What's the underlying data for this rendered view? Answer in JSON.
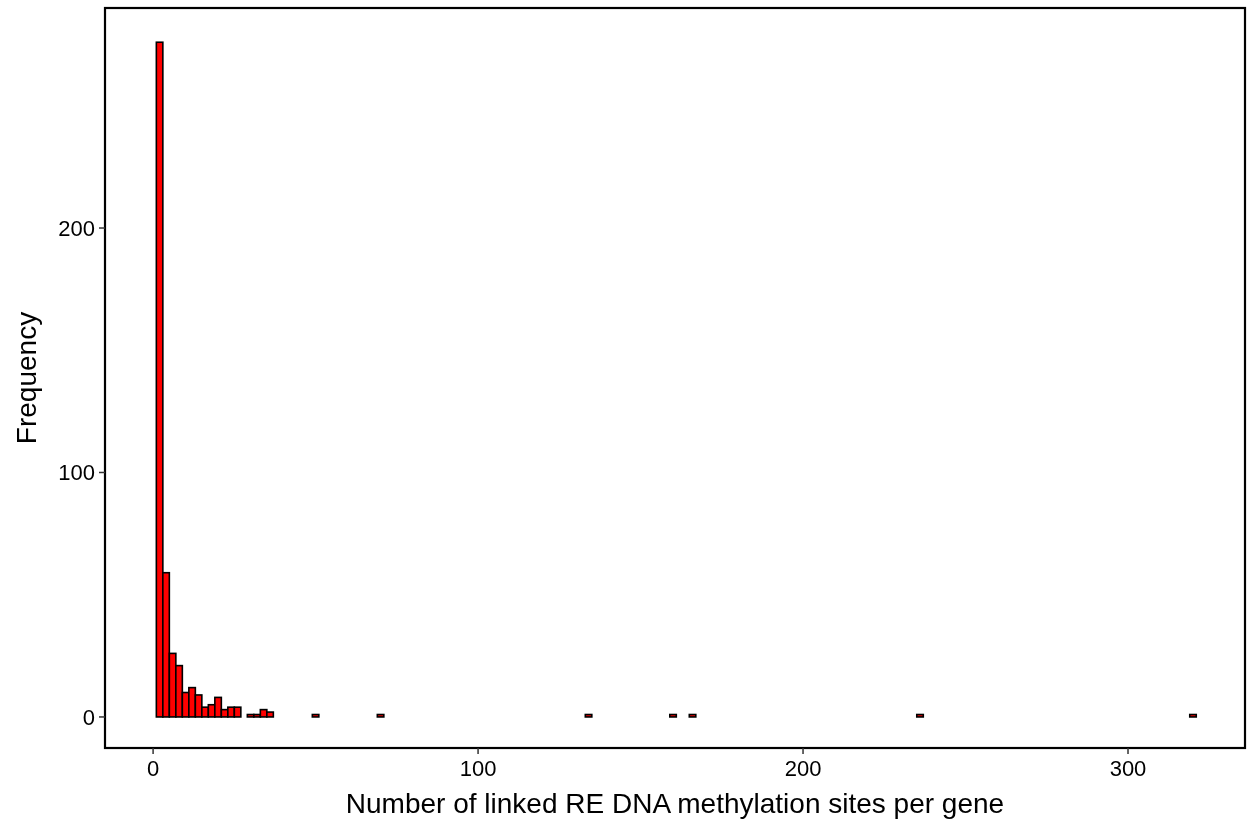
{
  "chart_data": {
    "type": "histogram",
    "xlabel": "Number of linked RE DNA methylation sites per gene",
    "ylabel": "Frequency",
    "color": "#ff0000",
    "bins": [
      1,
      3,
      5,
      7,
      9,
      11,
      13,
      15,
      17,
      19,
      21,
      23,
      25,
      27,
      29,
      31,
      33,
      35,
      37,
      39,
      41,
      43,
      45,
      47,
      49,
      51,
      53,
      55,
      57,
      59,
      61,
      63,
      65,
      67,
      69,
      71,
      73,
      75,
      77,
      79,
      81,
      83,
      85,
      87,
      89,
      91,
      93,
      95,
      97,
      99,
      101,
      103,
      105,
      107,
      109,
      111,
      113,
      115,
      117,
      119,
      121,
      123,
      125,
      127,
      129,
      131,
      133,
      135,
      137,
      139,
      141,
      143,
      145,
      147,
      149,
      151,
      153,
      155,
      157,
      159,
      161,
      163,
      165,
      167,
      169,
      171,
      173,
      175,
      177,
      179,
      181,
      183,
      185,
      187,
      189,
      191,
      193,
      195,
      197,
      199,
      201,
      203,
      205,
      207,
      209,
      211,
      213,
      215,
      217,
      219,
      221,
      223,
      225,
      227,
      229,
      231,
      233,
      235,
      237,
      239,
      241,
      243,
      245,
      247,
      249,
      251,
      253,
      255,
      257,
      259,
      261,
      263,
      265,
      267,
      269,
      271,
      273,
      275,
      277,
      279,
      281,
      283,
      285,
      287,
      289,
      291,
      293,
      295,
      297,
      299,
      301,
      303,
      305,
      307,
      309,
      311,
      313,
      315,
      317,
      319,
      321
    ],
    "values": [
      276,
      59,
      26,
      21,
      10,
      12,
      9,
      4,
      5,
      8,
      3,
      4,
      4,
      0,
      1,
      1,
      3,
      2,
      0,
      0,
      0,
      0,
      0,
      0,
      1,
      0,
      0,
      0,
      0,
      0,
      0,
      0,
      0,
      0,
      1,
      0,
      0,
      0,
      0,
      0,
      0,
      0,
      0,
      0,
      0,
      0,
      0,
      0,
      0,
      0,
      0,
      0,
      0,
      0,
      0,
      0,
      0,
      0,
      0,
      0,
      0,
      0,
      0,
      0,
      0,
      0,
      1,
      0,
      0,
      0,
      0,
      0,
      0,
      0,
      0,
      0,
      0,
      0,
      0,
      1,
      0,
      0,
      1,
      0,
      0,
      0,
      0,
      0,
      0,
      0,
      0,
      0,
      0,
      0,
      0,
      0,
      0,
      0,
      0,
      0,
      0,
      0,
      0,
      0,
      0,
      0,
      0,
      0,
      0,
      0,
      0,
      0,
      0,
      0,
      0,
      0,
      0,
      1,
      0,
      0,
      0,
      0,
      0,
      0,
      0,
      0,
      0,
      0,
      0,
      0,
      0,
      0,
      0,
      0,
      0,
      0,
      0,
      0,
      0,
      0,
      0,
      0,
      0,
      0,
      0,
      0,
      0,
      0,
      0,
      0,
      0,
      0,
      0,
      0,
      0,
      0,
      0,
      0,
      0,
      1
    ],
    "xlim": [
      -14.8,
      336
    ],
    "ylim": [
      -12.7,
      290
    ],
    "xticks": [
      0,
      100,
      200,
      300
    ],
    "yticks": [
      0,
      100,
      200
    ],
    "grid": false
  }
}
